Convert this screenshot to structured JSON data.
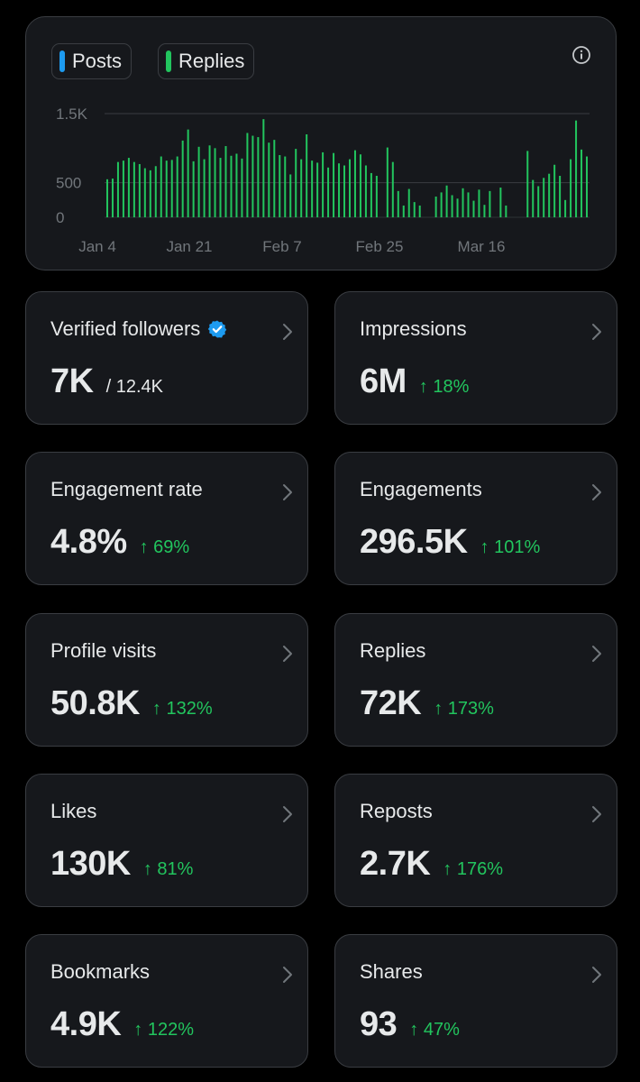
{
  "chart": {
    "legend": [
      {
        "label": "Posts",
        "color": "#1d9bf0"
      },
      {
        "label": "Replies",
        "color": "#22c55e"
      }
    ],
    "info_icon": "info-circle-icon"
  },
  "chart_data": {
    "type": "bar",
    "title": "",
    "xlabel": "",
    "ylabel": "",
    "y_ticks": [
      "1.5K",
      "500",
      "0"
    ],
    "y_tick_values": [
      1500,
      500,
      0
    ],
    "x_tick_labels": [
      "Jan 4",
      "Jan 21",
      "Feb 7",
      "Feb 25",
      "Mar 16"
    ],
    "ylim": [
      0,
      1500
    ],
    "grid": true,
    "series": [
      {
        "name": "Replies",
        "color": "#22c55e",
        "values": [
          550,
          560,
          800,
          820,
          860,
          800,
          770,
          710,
          680,
          740,
          880,
          820,
          830,
          880,
          1110,
          1270,
          810,
          1020,
          840,
          1040,
          1000,
          860,
          1030,
          890,
          920,
          850,
          1220,
          1180,
          1160,
          1420,
          1080,
          1120,
          900,
          880,
          620,
          990,
          840,
          1200,
          820,
          790,
          940,
          720,
          930,
          780,
          750,
          840,
          970,
          910,
          750,
          640,
          600,
          0,
          1010,
          800,
          380,
          170,
          410,
          220,
          170,
          0,
          0,
          300,
          360,
          460,
          320,
          270,
          420,
          360,
          240,
          400,
          180,
          380,
          0,
          430,
          170,
          0,
          0,
          0,
          960,
          540,
          450,
          570,
          630,
          760,
          600,
          250,
          840,
          1400,
          980,
          880
        ]
      }
    ]
  },
  "metrics": [
    {
      "label": "Verified followers",
      "value": "7K",
      "sub": "/ 12.4K",
      "change": "",
      "verified": true
    },
    {
      "label": "Impressions",
      "value": "6M",
      "sub": "",
      "change": "↑ 18%",
      "verified": false
    },
    {
      "label": "Engagement rate",
      "value": "4.8%",
      "sub": "",
      "change": "↑ 69%",
      "verified": false
    },
    {
      "label": "Engagements",
      "value": "296.5K",
      "sub": "",
      "change": "↑ 101%",
      "verified": false
    },
    {
      "label": "Profile visits",
      "value": "50.8K",
      "sub": "",
      "change": "↑ 132%",
      "verified": false
    },
    {
      "label": "Replies",
      "value": "72K",
      "sub": "",
      "change": "↑ 173%",
      "verified": false
    },
    {
      "label": "Likes",
      "value": "130K",
      "sub": "",
      "change": "↑ 81%",
      "verified": false
    },
    {
      "label": "Reposts",
      "value": "2.7K",
      "sub": "",
      "change": "↑ 176%",
      "verified": false
    },
    {
      "label": "Bookmarks",
      "value": "4.9K",
      "sub": "",
      "change": "↑ 122%",
      "verified": false
    },
    {
      "label": "Shares",
      "value": "93",
      "sub": "",
      "change": "↑ 47%",
      "verified": false
    }
  ],
  "colors": {
    "background": "#000000",
    "card": "#16181c",
    "border": "#3a3d42",
    "positive": "#22c55e",
    "verified": "#1d9bf0",
    "muted": "#71767b"
  }
}
